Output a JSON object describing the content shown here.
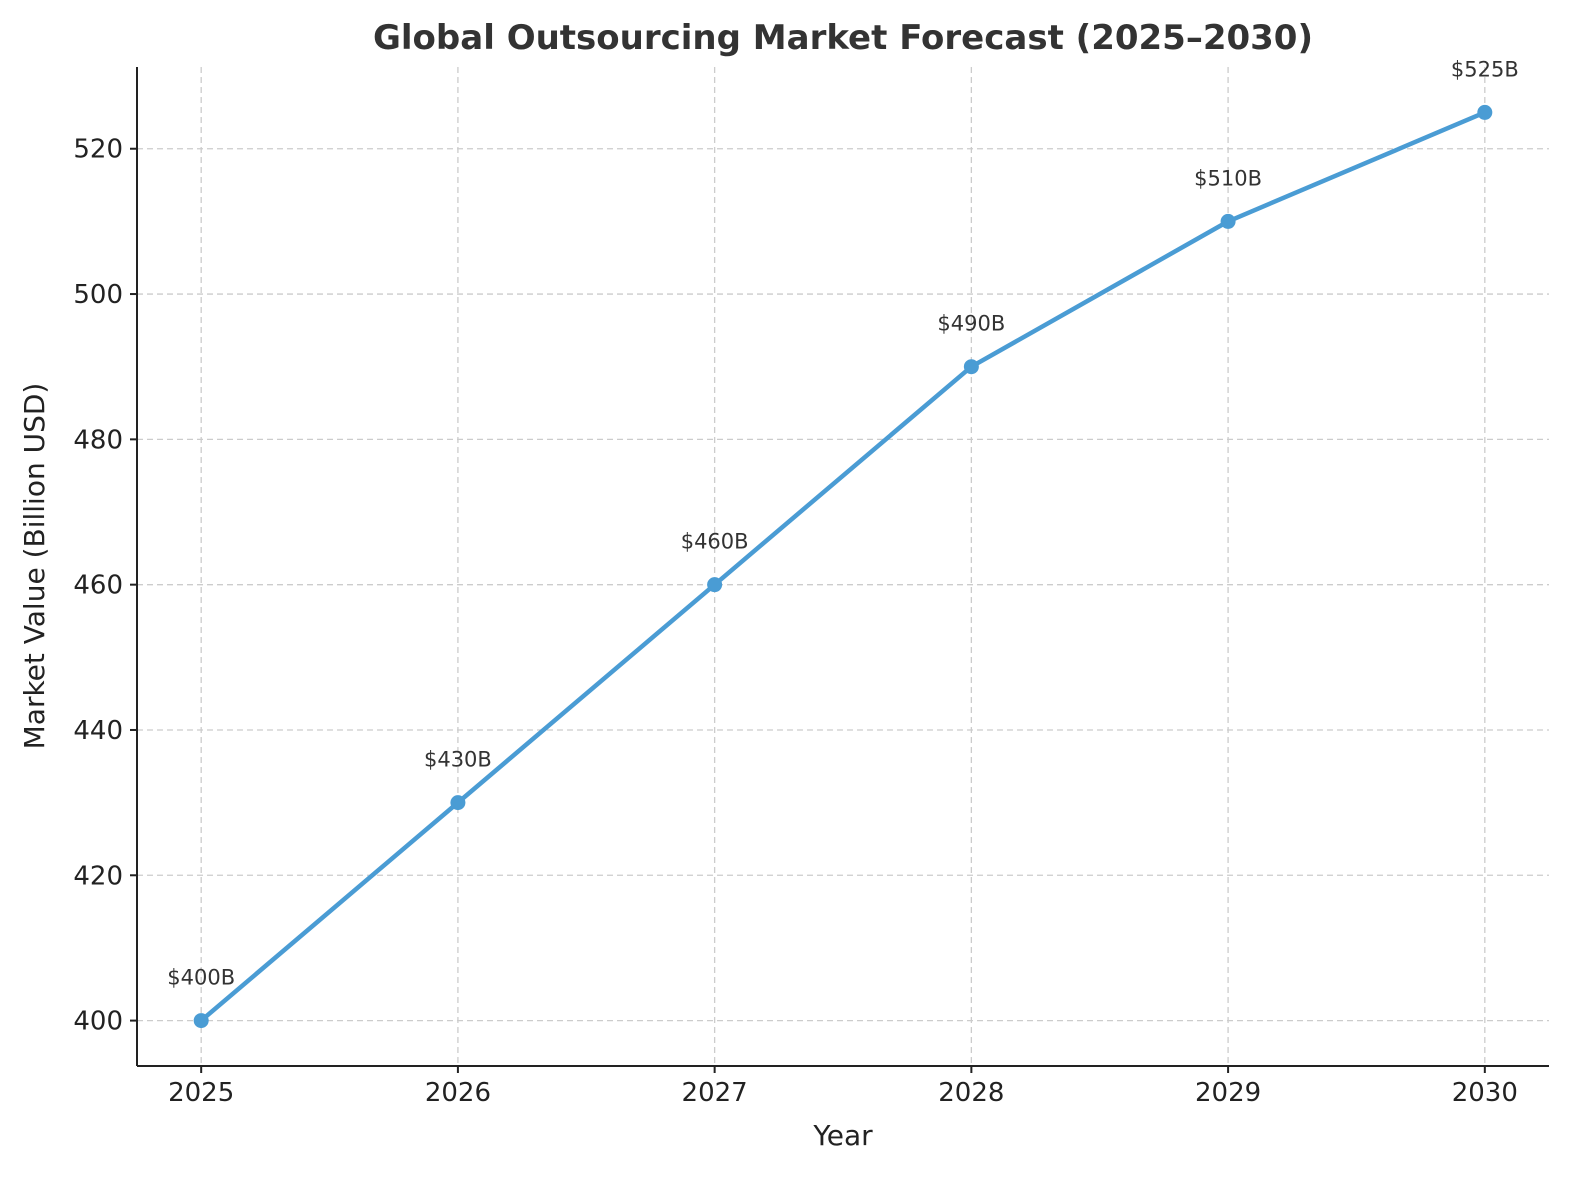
{
  "chart_data": {
    "type": "line",
    "title": "Global Outsourcing Market Forecast (2025–2030)",
    "xlabel": "Year",
    "ylabel": "Market Value (Billion USD)",
    "x": [
      2025,
      2026,
      2027,
      2028,
      2029,
      2030
    ],
    "xticks": [
      "2025",
      "2026",
      "2027",
      "2028",
      "2029",
      "2030"
    ],
    "series": [
      {
        "values": [
          400,
          430,
          460,
          490,
          510,
          525
        ],
        "color": "#4a9cd4",
        "marker": "circle"
      }
    ],
    "data_labels": [
      "$400B",
      "$430B",
      "$460B",
      "$490B",
      "$510B",
      "$525B"
    ],
    "yticks": [
      "400",
      "420",
      "440",
      "460",
      "480",
      "500",
      "520"
    ],
    "ytick_values": [
      400,
      420,
      440,
      460,
      480,
      500,
      520
    ],
    "xlim": [
      2024.75,
      2030.25
    ],
    "ylim": [
      393.75,
      531.25
    ],
    "grid": true,
    "legend": "none"
  }
}
